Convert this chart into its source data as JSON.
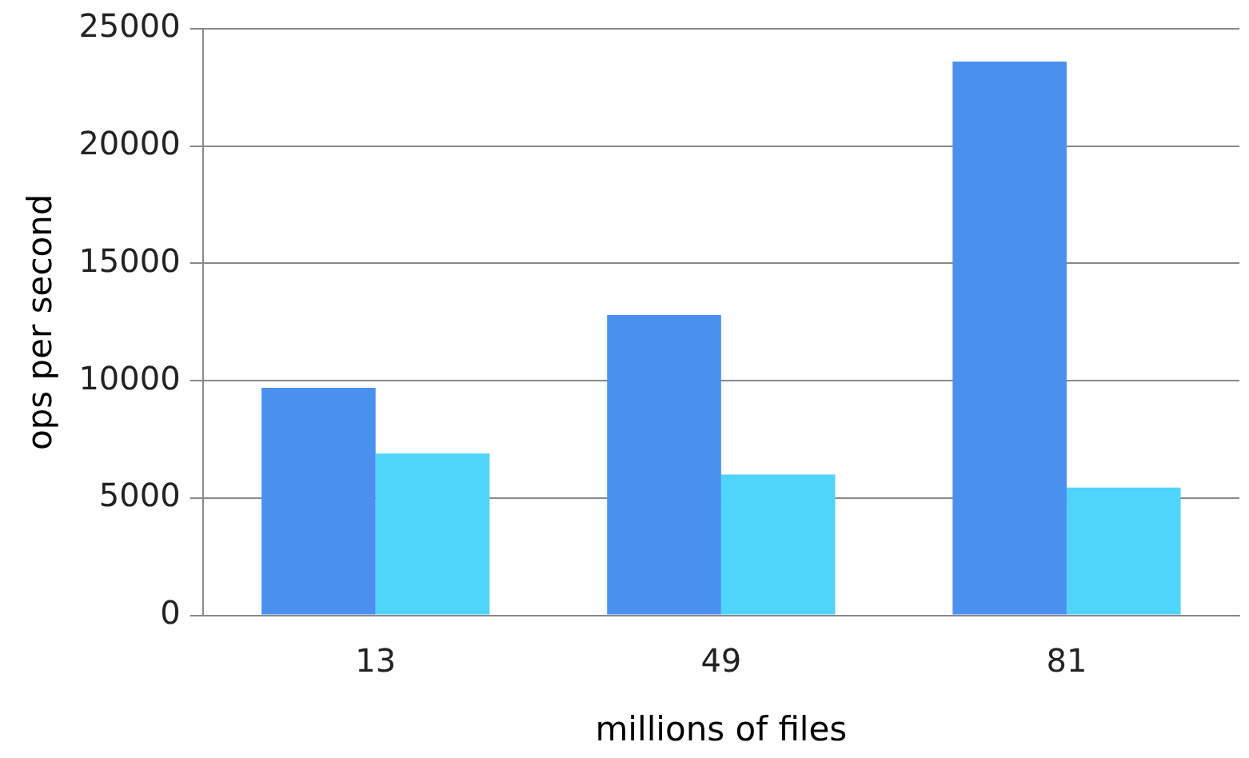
{
  "chart_data": {
    "type": "bar",
    "xlabel": "millions of files",
    "ylabel": "ops per second",
    "categories": [
      "13",
      "49",
      "81"
    ],
    "series": [
      {
        "color": "#4a90ee",
        "values": [
          9700,
          12800,
          23600
        ]
      },
      {
        "color": "#4fd4fa",
        "values": [
          6900,
          6000,
          5450
        ]
      }
    ],
    "ylim": [
      0,
      25000
    ],
    "yticks": [
      0,
      5000,
      10000,
      15000,
      20000,
      25000
    ],
    "grid": "y",
    "legend": false
  }
}
